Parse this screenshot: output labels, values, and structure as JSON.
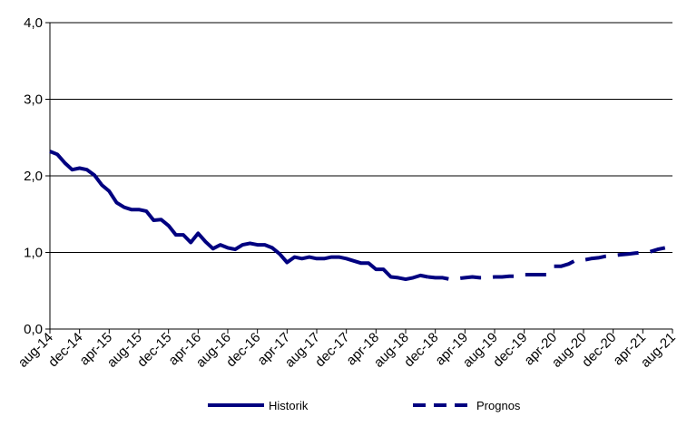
{
  "chart_data": {
    "type": "line",
    "title": "",
    "xlabel": "",
    "ylabel": "",
    "ylim": [
      0,
      4
    ],
    "yticks": [
      "0,0",
      "1,0",
      "2,0",
      "3,0",
      "4,0"
    ],
    "xticks": [
      "aug-14",
      "dec-14",
      "apr-15",
      "aug-15",
      "dec-15",
      "apr-16",
      "aug-16",
      "dec-16",
      "apr-17",
      "aug-17",
      "dec-17",
      "apr-18",
      "aug-18",
      "dec-18",
      "apr-19",
      "aug-19",
      "dec-19",
      "apr-20",
      "aug-20",
      "dec-20",
      "apr-21",
      "aug-21"
    ],
    "grid": "horizontal",
    "legend_position": "bottom",
    "colors": {
      "series": "#000080"
    },
    "series": [
      {
        "name": "Historik",
        "style": "solid",
        "x": [
          "2014-08",
          "2014-09",
          "2014-10",
          "2014-11",
          "2014-12",
          "2015-01",
          "2015-02",
          "2015-03",
          "2015-04",
          "2015-05",
          "2015-06",
          "2015-07",
          "2015-08",
          "2015-09",
          "2015-10",
          "2015-11",
          "2015-12",
          "2016-01",
          "2016-02",
          "2016-03",
          "2016-04",
          "2016-05",
          "2016-06",
          "2016-07",
          "2016-08",
          "2016-09",
          "2016-10",
          "2016-11",
          "2016-12",
          "2017-01",
          "2017-02",
          "2017-03",
          "2017-04",
          "2017-05",
          "2017-06",
          "2017-07",
          "2017-08",
          "2017-09",
          "2017-10",
          "2017-11",
          "2017-12",
          "2018-01",
          "2018-02",
          "2018-03",
          "2018-04",
          "2018-05",
          "2018-06",
          "2018-07",
          "2018-08",
          "2018-09",
          "2018-10",
          "2018-11"
        ],
        "values": [
          2.32,
          2.28,
          2.17,
          2.08,
          2.1,
          2.08,
          2.01,
          1.88,
          1.8,
          1.65,
          1.59,
          1.56,
          1.56,
          1.54,
          1.42,
          1.43,
          1.35,
          1.23,
          1.23,
          1.13,
          1.25,
          1.14,
          1.05,
          1.1,
          1.06,
          1.04,
          1.1,
          1.12,
          1.1,
          1.1,
          1.06,
          0.98,
          0.87,
          0.94,
          0.92,
          0.94,
          0.92,
          0.92,
          0.94,
          0.94,
          0.92,
          0.89,
          0.86,
          0.86,
          0.78,
          0.78,
          0.68,
          0.67,
          0.65,
          0.67,
          0.7,
          0.68
        ]
      },
      {
        "name": "Prognos",
        "style": "dashed",
        "x": [
          "2018-11",
          "2018-12",
          "2019-01",
          "2019-02",
          "2019-03",
          "2019-04",
          "2019-05",
          "2019-06",
          "2019-07",
          "2019-08",
          "2019-09",
          "2019-10",
          "2019-11",
          "2019-12",
          "2020-01",
          "2020-02",
          "2020-03",
          "2020-04",
          "2020-05",
          "2020-06",
          "2020-07",
          "2020-08",
          "2020-09",
          "2020-10",
          "2020-11",
          "2020-12",
          "2021-01",
          "2021-02",
          "2021-03",
          "2021-04",
          "2021-05",
          "2021-06",
          "2021-07"
        ],
        "values": [
          0.68,
          0.67,
          0.67,
          0.65,
          0.66,
          0.67,
          0.68,
          0.67,
          0.67,
          0.68,
          0.68,
          0.69,
          0.69,
          0.71,
          0.71,
          0.71,
          0.71,
          0.82,
          0.82,
          0.85,
          0.9,
          0.9,
          0.92,
          0.93,
          0.95,
          0.96,
          0.97,
          0.98,
          0.99,
          1.0,
          1.01,
          1.04,
          1.06
        ]
      }
    ]
  }
}
